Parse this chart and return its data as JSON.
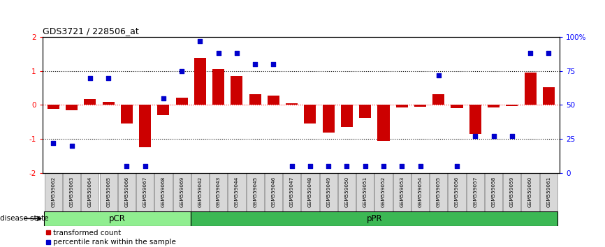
{
  "title": "GDS3721 / 228506_at",
  "samples": [
    "GSM559062",
    "GSM559063",
    "GSM559064",
    "GSM559065",
    "GSM559066",
    "GSM559067",
    "GSM559068",
    "GSM559069",
    "GSM559042",
    "GSM559043",
    "GSM559044",
    "GSM559045",
    "GSM559046",
    "GSM559047",
    "GSM559048",
    "GSM559049",
    "GSM559050",
    "GSM559051",
    "GSM559052",
    "GSM559053",
    "GSM559054",
    "GSM559055",
    "GSM559056",
    "GSM559057",
    "GSM559058",
    "GSM559059",
    "GSM559060",
    "GSM559061"
  ],
  "bar_values": [
    -0.12,
    -0.15,
    0.18,
    0.1,
    -0.55,
    -1.25,
    -0.3,
    0.22,
    1.38,
    1.05,
    0.85,
    0.32,
    0.28,
    0.05,
    -0.55,
    -0.82,
    -0.65,
    -0.38,
    -1.05,
    -0.08,
    -0.05,
    0.32,
    -0.1,
    -0.85,
    -0.08,
    -0.04,
    0.95,
    0.52
  ],
  "dot_percentiles": [
    22,
    20,
    70,
    70,
    5,
    5,
    55,
    75,
    97,
    88,
    88,
    80,
    80,
    5,
    5,
    5,
    5,
    5,
    5,
    5,
    5,
    72,
    5,
    27,
    27,
    27,
    88,
    88
  ],
  "pCR_count": 8,
  "pPR_count": 20,
  "ylim": [
    -2,
    2
  ],
  "y2lim": [
    0,
    100
  ],
  "yticks": [
    -2,
    -1,
    0,
    1,
    2
  ],
  "y2ticks": [
    0,
    25,
    50,
    75,
    100
  ],
  "bar_color": "#CC0000",
  "dot_color": "#0000CC",
  "pcr_color": "#90EE90",
  "ppr_color": "#3CB854",
  "axis_bg": "#D8D8D8",
  "legend_red": "transformed count",
  "legend_blue": "percentile rank within the sample",
  "disease_state_label": "disease state",
  "pcr_label": "pCR",
  "ppr_label": "pPR"
}
